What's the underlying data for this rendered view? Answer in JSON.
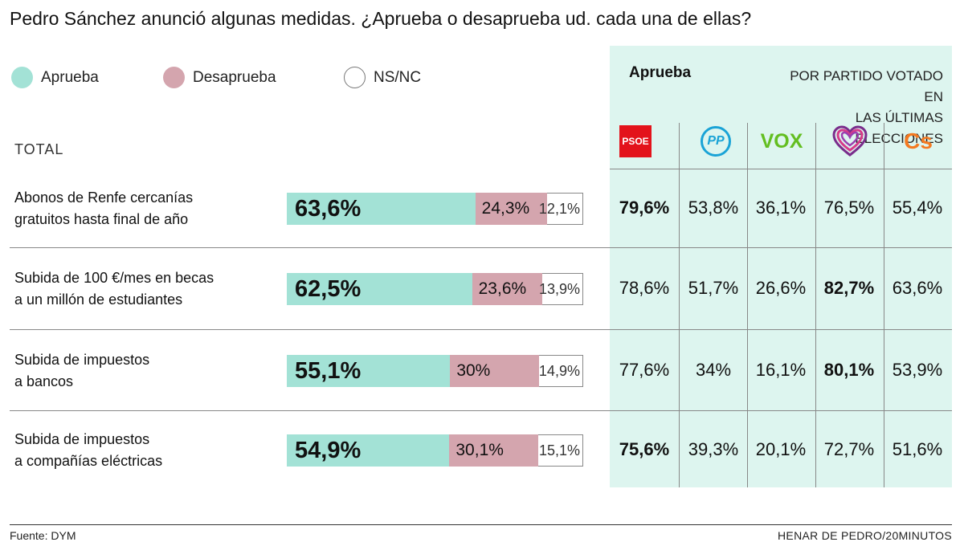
{
  "title": "Pedro Sánchez anunció algunas medidas. ¿Aprueba o desaprueba ud. cada una de ellas?",
  "colors": {
    "approve": "#a3e2d6",
    "disapprove": "#d4a5ae",
    "nsnc": "#ffffff",
    "panel": "#ddf5ef",
    "psoe": "#e3131b",
    "pp": "#1aa3d6",
    "vox": "#63be21",
    "podemos": "#7a2d8c",
    "cs": "#f47920"
  },
  "legend": [
    {
      "label": "Aprueba",
      "key": "approve"
    },
    {
      "label": "Desaprueba",
      "key": "disapprove"
    },
    {
      "label": "NS/NC",
      "key": "nsnc"
    }
  ],
  "total_label": "TOTAL",
  "panel": {
    "heading": "Aprueba",
    "subheading_line1": "POR PARTIDO VOTADO EN",
    "subheading_line2": "LAS ÚLTIMAS ELECCIONES",
    "parties": [
      {
        "logo_text": "PSOE",
        "icon": "psoe-logo"
      },
      {
        "logo_text": "PP",
        "icon": "pp-logo"
      },
      {
        "logo_text": "VOX",
        "icon": "vox-logo"
      },
      {
        "logo_text": "",
        "icon": "unidas-podemos-heart-logo"
      },
      {
        "logo_text": "Cs",
        "icon": "ciudadanos-logo"
      }
    ]
  },
  "chart_data": {
    "type": "bar",
    "stacked": true,
    "orientation": "horizontal",
    "title": "Pedro Sánchez anunció algunas medidas. ¿Aprueba o desaprueba ud. cada una de ellas?",
    "categories": [
      {
        "line1": "Abonos de Renfe cercanías",
        "line2": "gratuitos hasta final de año"
      },
      {
        "line1": "Subida de 100 €/mes en becas",
        "line2": "a un millón de estudiantes"
      },
      {
        "line1": "Subida de impuestos",
        "line2": "a bancos"
      },
      {
        "line1": "Subida de impuestos",
        "line2": "a compañías eléctricas"
      }
    ],
    "series": [
      {
        "name": "Aprueba",
        "values": [
          63.6,
          62.5,
          55.1,
          54.9
        ],
        "labels": [
          "63,6%",
          "62,5%",
          "55,1%",
          "54,9%"
        ]
      },
      {
        "name": "Desaprueba",
        "values": [
          24.3,
          23.6,
          30.0,
          30.1
        ],
        "labels": [
          "24,3%",
          "23,6%",
          "30%",
          "30,1%"
        ]
      },
      {
        "name": "NS/NC",
        "values": [
          12.1,
          13.9,
          14.9,
          15.1
        ],
        "labels": [
          "12,1%",
          "13,9%",
          "14,9%",
          "15,1%"
        ]
      }
    ],
    "by_party": {
      "parties": [
        "PSOE",
        "PP",
        "VOX",
        "Unidas Podemos",
        "Cs"
      ],
      "rows": [
        {
          "labels": [
            "79,6%",
            "53,8%",
            "36,1%",
            "76,5%",
            "55,4%"
          ],
          "values": [
            79.6,
            53.8,
            36.1,
            76.5,
            55.4
          ],
          "bold": [
            true,
            false,
            false,
            false,
            false
          ]
        },
        {
          "labels": [
            "78,6%",
            "51,7%",
            "26,6%",
            "82,7%",
            "63,6%"
          ],
          "values": [
            78.6,
            51.7,
            26.6,
            82.7,
            63.6
          ],
          "bold": [
            false,
            false,
            false,
            true,
            false
          ]
        },
        {
          "labels": [
            "77,6%",
            "34%",
            "16,1%",
            "80,1%",
            "53,9%"
          ],
          "values": [
            77.6,
            34.0,
            16.1,
            80.1,
            53.9
          ],
          "bold": [
            false,
            false,
            false,
            true,
            false
          ]
        },
        {
          "labels": [
            "75,6%",
            "39,3%",
            "20,1%",
            "72,7%",
            "51,6%"
          ],
          "values": [
            75.6,
            39.3,
            20.1,
            72.7,
            51.6
          ],
          "bold": [
            true,
            false,
            false,
            false,
            false
          ]
        }
      ]
    },
    "xlim": [
      0,
      100
    ]
  },
  "footer": {
    "source": "Fuente: DYM",
    "credit": "HENAR DE PEDRO/20MINUTOS"
  }
}
